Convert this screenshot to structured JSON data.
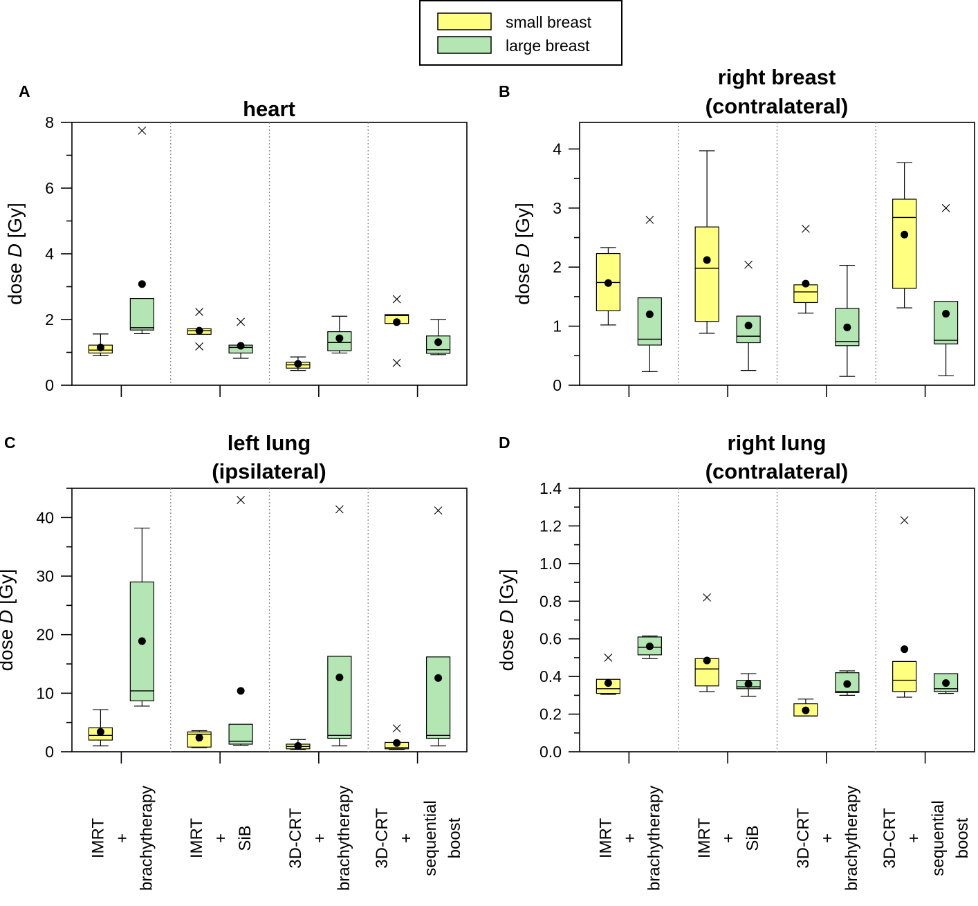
{
  "legend": {
    "items": [
      {
        "label": "small breast",
        "color": "#ffff80"
      },
      {
        "label": "large breast",
        "color": "#b3e6b3"
      }
    ]
  },
  "categories": [
    [
      "IMRT",
      "+",
      "brachytherapy"
    ],
    [
      "IMRT",
      "+",
      "SiB"
    ],
    [
      "3D-CRT",
      "+",
      "brachytherapy"
    ],
    [
      "3D-CRT",
      "+",
      "sequential",
      "boost"
    ]
  ],
  "ylabel": {
    "prefix": "dose ",
    "var": "D",
    "suffix": " [Gy]"
  },
  "chart_data": [
    {
      "panel": "A",
      "type": "box",
      "title": [
        "heart"
      ],
      "ylim": [
        0,
        8
      ],
      "yticks": [
        "0",
        "2",
        "4",
        "6",
        "8"
      ],
      "ytick_values": [
        0,
        2,
        4,
        6,
        8
      ],
      "ylabel": "dose D [Gy]",
      "series": [
        {
          "name": "small breast",
          "boxes": [
            {
              "q1": 0.98,
              "median": 1.07,
              "q3": 1.22,
              "wlo": 0.9,
              "whi": 1.56,
              "mean": 1.15,
              "outliers": []
            },
            {
              "q1": 1.55,
              "median": 1.66,
              "q3": 1.72,
              "wlo": null,
              "whi": null,
              "mean": 1.66,
              "outliers": [
                2.23,
                1.18
              ]
            },
            {
              "q1": 0.52,
              "median": 0.62,
              "q3": 0.7,
              "wlo": 0.45,
              "whi": 0.86,
              "mean": 0.65,
              "outliers": []
            },
            {
              "q1": 1.88,
              "median": 2.12,
              "q3": 2.15,
              "wlo": null,
              "whi": null,
              "mean": 1.92,
              "outliers": [
                2.62,
                0.68
              ]
            }
          ]
        },
        {
          "name": "large breast",
          "boxes": [
            {
              "q1": 1.68,
              "median": 1.75,
              "q3": 2.64,
              "wlo": 1.57,
              "whi": null,
              "mean": 3.08,
              "outliers": [
                7.75
              ]
            },
            {
              "q1": 0.98,
              "median": 1.15,
              "q3": 1.22,
              "wlo": 0.82,
              "whi": null,
              "mean": 1.2,
              "outliers": [
                1.93
              ]
            },
            {
              "q1": 1.05,
              "median": 1.3,
              "q3": 1.63,
              "wlo": 0.98,
              "whi": 2.1,
              "mean": 1.43,
              "outliers": []
            },
            {
              "q1": 0.97,
              "median": 1.08,
              "q3": 1.5,
              "wlo": 0.93,
              "whi": 2.0,
              "mean": 1.31,
              "outliers": []
            }
          ]
        }
      ]
    },
    {
      "panel": "B",
      "type": "box",
      "title": [
        "right breast",
        "(contralateral)"
      ],
      "ylim": [
        0,
        4.45
      ],
      "yticks": [
        "0",
        "1",
        "2",
        "3",
        "4"
      ],
      "ytick_values": [
        0,
        1,
        2,
        3,
        4
      ],
      "ylabel": "dose D [Gy]",
      "series": [
        {
          "name": "small breast",
          "boxes": [
            {
              "q1": 1.26,
              "median": 1.74,
              "q3": 2.23,
              "wlo": 1.02,
              "whi": 2.33,
              "mean": 1.73,
              "outliers": []
            },
            {
              "q1": 1.08,
              "median": 1.98,
              "q3": 2.68,
              "wlo": 0.88,
              "whi": 3.97,
              "mean": 2.12,
              "outliers": []
            },
            {
              "q1": 1.4,
              "median": 1.58,
              "q3": 1.7,
              "wlo": 1.22,
              "whi": null,
              "mean": 1.72,
              "outliers": [
                2.65
              ]
            },
            {
              "q1": 1.64,
              "median": 2.84,
              "q3": 3.15,
              "wlo": 1.31,
              "whi": 3.77,
              "mean": 2.55,
              "outliers": []
            }
          ]
        },
        {
          "name": "large breast",
          "boxes": [
            {
              "q1": 0.68,
              "median": 0.78,
              "q3": 1.48,
              "wlo": 0.23,
              "whi": null,
              "mean": 1.2,
              "outliers": [
                2.8
              ]
            },
            {
              "q1": 0.72,
              "median": 0.83,
              "q3": 1.17,
              "wlo": 0.25,
              "whi": null,
              "mean": 1.01,
              "outliers": [
                2.04
              ]
            },
            {
              "q1": 0.67,
              "median": 0.74,
              "q3": 1.3,
              "wlo": 0.15,
              "whi": 2.03,
              "mean": 0.98,
              "outliers": []
            },
            {
              "q1": 0.7,
              "median": 0.76,
              "q3": 1.42,
              "wlo": 0.16,
              "whi": null,
              "mean": 1.21,
              "outliers": [
                3.0
              ]
            }
          ]
        }
      ]
    },
    {
      "panel": "C",
      "type": "box",
      "title": [
        "left lung",
        "(ipsilateral)"
      ],
      "ylim": [
        0,
        45
      ],
      "yticks": [
        "0",
        "10",
        "20",
        "30",
        "40"
      ],
      "ytick_values": [
        0,
        10,
        20,
        30,
        40
      ],
      "ylabel": "dose D [Gy]",
      "series": [
        {
          "name": "small breast",
          "boxes": [
            {
              "q1": 2.0,
              "median": 2.8,
              "q3": 4.1,
              "wlo": 1.0,
              "whi": 7.2,
              "mean": 3.4,
              "outliers": []
            },
            {
              "q1": 0.8,
              "median": 3.0,
              "q3": 3.4,
              "wlo": 0.7,
              "whi": 3.6,
              "mean": 2.4,
              "outliers": []
            },
            {
              "q1": 0.5,
              "median": 0.9,
              "q3": 1.3,
              "wlo": 0.4,
              "whi": 2.1,
              "mean": 1.0,
              "outliers": []
            },
            {
              "q1": 0.5,
              "median": 0.7,
              "q3": 1.6,
              "wlo": 0.4,
              "whi": null,
              "mean": 1.5,
              "outliers": [
                4.0
              ]
            }
          ]
        },
        {
          "name": "large breast",
          "boxes": [
            {
              "q1": 8.7,
              "median": 10.4,
              "q3": 29.0,
              "wlo": 7.8,
              "whi": 38.2,
              "mean": 18.9,
              "outliers": []
            },
            {
              "q1": 1.3,
              "median": 1.8,
              "q3": 4.7,
              "wlo": 1.1,
              "whi": null,
              "mean": 10.4,
              "outliers": [
                43.0
              ]
            },
            {
              "q1": 2.3,
              "median": 2.8,
              "q3": 16.3,
              "wlo": 1.0,
              "whi": null,
              "mean": 12.7,
              "outliers": [
                41.4
              ]
            },
            {
              "q1": 2.3,
              "median": 2.8,
              "q3": 16.2,
              "wlo": 1.0,
              "whi": null,
              "mean": 12.6,
              "outliers": [
                41.2
              ]
            }
          ]
        }
      ]
    },
    {
      "panel": "D",
      "type": "box",
      "title": [
        "right lung",
        "(contralateral)"
      ],
      "ylim": [
        0,
        1.4
      ],
      "yticks": [
        "0.0",
        "0.2",
        "0.4",
        "0.6",
        "0.8",
        "1.0",
        "1.2",
        "1.4"
      ],
      "ytick_values": [
        0,
        0.2,
        0.4,
        0.6,
        0.8,
        1.0,
        1.2,
        1.4
      ],
      "ylabel": "dose D [Gy]",
      "series": [
        {
          "name": "small breast",
          "boxes": [
            {
              "q1": 0.31,
              "median": 0.335,
              "q3": 0.385,
              "wlo": 0.305,
              "whi": null,
              "mean": 0.365,
              "outliers": [
                0.5
              ]
            },
            {
              "q1": 0.35,
              "median": 0.44,
              "q3": 0.495,
              "wlo": 0.32,
              "whi": null,
              "mean": 0.485,
              "outliers": [
                0.82
              ]
            },
            {
              "q1": 0.19,
              "median": 0.19,
              "q3": 0.255,
              "wlo": null,
              "whi": 0.28,
              "mean": 0.22,
              "outliers": []
            },
            {
              "q1": 0.32,
              "median": 0.38,
              "q3": 0.48,
              "wlo": 0.29,
              "whi": null,
              "mean": 0.545,
              "outliers": [
                1.23
              ]
            }
          ]
        },
        {
          "name": "large breast",
          "boxes": [
            {
              "q1": 0.515,
              "median": 0.555,
              "q3": 0.61,
              "wlo": 0.495,
              "whi": 0.615,
              "mean": 0.56,
              "outliers": []
            },
            {
              "q1": 0.335,
              "median": 0.345,
              "q3": 0.38,
              "wlo": 0.295,
              "whi": 0.415,
              "mean": 0.36,
              "outliers": []
            },
            {
              "q1": 0.315,
              "median": 0.32,
              "q3": 0.42,
              "wlo": 0.3,
              "whi": 0.43,
              "mean": 0.36,
              "outliers": []
            },
            {
              "q1": 0.32,
              "median": 0.335,
              "q3": 0.415,
              "wlo": 0.31,
              "whi": null,
              "mean": 0.365,
              "outliers": []
            }
          ]
        }
      ]
    }
  ]
}
